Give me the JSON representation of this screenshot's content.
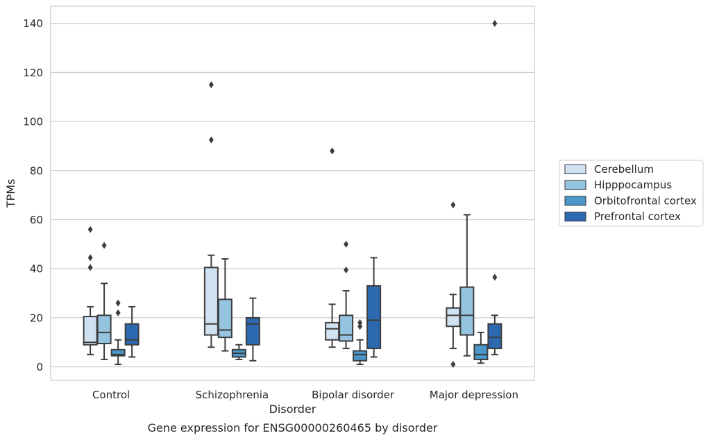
{
  "caption": "Gene expression for ENSG00000260465 by disorder",
  "chart_data": {
    "type": "boxplot",
    "xlabel": "Disorder",
    "ylabel": "TPMs",
    "ylim": [
      -5.5,
      147
    ],
    "yticks": [
      0,
      20,
      40,
      60,
      80,
      100,
      120,
      140
    ],
    "grid": "horizontal",
    "legend_placement": "right",
    "categories": [
      "Control",
      "Schizophrenia",
      "Bipolar disorder",
      "Major depression"
    ],
    "series": [
      {
        "name": "Cerebellum",
        "color": "#d0e1f2",
        "boxes": [
          {
            "whislo": 5,
            "q1": 9,
            "med": 10,
            "q3": 20.5,
            "whishi": 24.5,
            "fliers": [
              40.5,
              44.5,
              56
            ]
          },
          {
            "whislo": 8,
            "q1": 13,
            "med": 17.5,
            "q3": 40.5,
            "whishi": 45.5,
            "fliers": [
              92.5,
              115
            ]
          },
          {
            "whislo": 8,
            "q1": 11,
            "med": 15.5,
            "q3": 18,
            "whishi": 25.5,
            "fliers": [
              88
            ]
          },
          {
            "whislo": 7.5,
            "q1": 16.5,
            "med": 21,
            "q3": 24,
            "whishi": 29.5,
            "fliers": [
              1,
              66
            ]
          }
        ]
      },
      {
        "name": "Hipppocampus",
        "color": "#94c4df",
        "boxes": [
          {
            "whislo": 3,
            "q1": 9.5,
            "med": 14,
            "q3": 21,
            "whishi": 34,
            "fliers": [
              49.5
            ]
          },
          {
            "whislo": 6.5,
            "q1": 12,
            "med": 15,
            "q3": 27.5,
            "whishi": 44,
            "fliers": []
          },
          {
            "whislo": 7.5,
            "q1": 10.5,
            "med": 13,
            "q3": 21,
            "whishi": 31,
            "fliers": [
              39.5,
              50
            ]
          },
          {
            "whislo": 4.5,
            "q1": 13,
            "med": 21,
            "q3": 32.5,
            "whishi": 62,
            "fliers": []
          }
        ]
      },
      {
        "name": "Orbitofrontal cortex",
        "color": "#4a98c9",
        "boxes": [
          {
            "whislo": 1,
            "q1": 4.5,
            "med": 5,
            "q3": 7,
            "whishi": 11,
            "fliers": [
              22,
              26
            ]
          },
          {
            "whislo": 3,
            "q1": 4,
            "med": 5.5,
            "q3": 7,
            "whishi": 9,
            "fliers": []
          },
          {
            "whislo": 1,
            "q1": 2.5,
            "med": 5,
            "q3": 6.5,
            "whishi": 11,
            "fliers": [
              16.5,
              18
            ]
          },
          {
            "whislo": 1.5,
            "q1": 3,
            "med": 5,
            "q3": 9,
            "whishi": 14,
            "fliers": []
          }
        ]
      },
      {
        "name": "Prefrontal cortex",
        "color": "#2c69b0",
        "boxes": [
          {
            "whislo": 4,
            "q1": 9,
            "med": 11,
            "q3": 17.5,
            "whishi": 24.5,
            "fliers": []
          },
          {
            "whislo": 2.5,
            "q1": 9,
            "med": 17.5,
            "q3": 20,
            "whishi": 28,
            "fliers": []
          },
          {
            "whislo": 4,
            "q1": 7.5,
            "med": 19,
            "q3": 33,
            "whishi": 44.5,
            "fliers": []
          },
          {
            "whislo": 5,
            "q1": 7.5,
            "med": 12,
            "q3": 17.5,
            "whishi": 21,
            "fliers": [
              36.5,
              140
            ]
          }
        ]
      }
    ]
  }
}
